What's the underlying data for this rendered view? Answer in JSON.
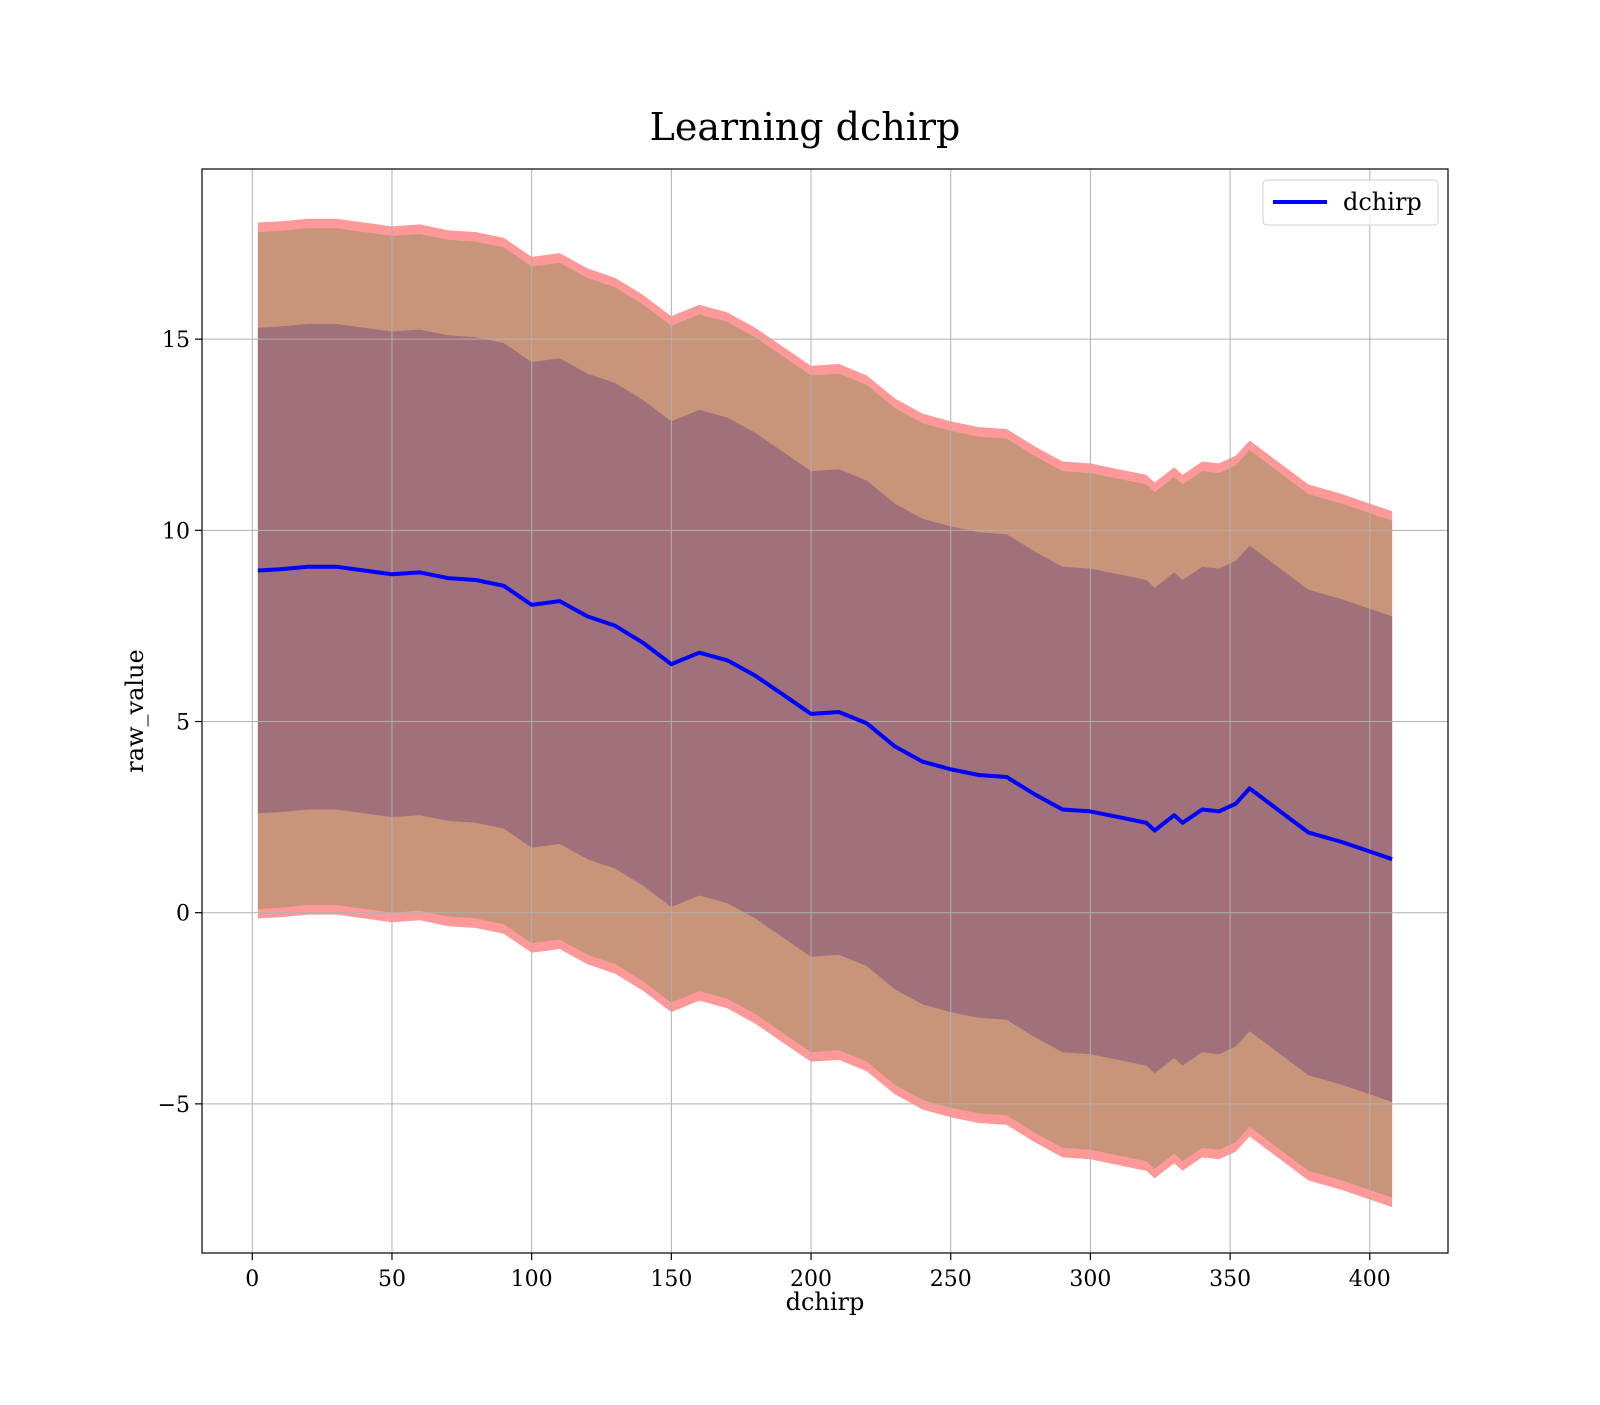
{
  "chart_data": {
    "type": "line",
    "title": "Learning dchirp",
    "xlabel": "dchirp",
    "ylabel": "raw_value",
    "xlim": [
      -18,
      428
    ],
    "ylim": [
      -8.9,
      19.45
    ],
    "grid": true,
    "legend_position": "top-right",
    "xticks": [
      0,
      50,
      100,
      150,
      200,
      250,
      300,
      350,
      400
    ],
    "xtick_labels": [
      "0",
      "50",
      "100",
      "150",
      "200",
      "250",
      "300",
      "350",
      "400"
    ],
    "yticks": [
      -5,
      0,
      5,
      10,
      15
    ],
    "ytick_labels": [
      "−5",
      "0",
      "5",
      "10",
      "15"
    ],
    "colors": {
      "mean_line": "#0000ff",
      "outer_band": "#ff9999",
      "mid_band": "#c8957a",
      "inner_band": "#a0717a",
      "grid": "#b0b0b0"
    },
    "series": [
      {
        "name": "dchirp",
        "x": [
          2,
          10,
          20,
          30,
          40,
          50,
          60,
          70,
          80,
          90,
          100,
          110,
          120,
          130,
          140,
          150,
          160,
          170,
          180,
          190,
          200,
          210,
          220,
          230,
          240,
          250,
          260,
          270,
          280,
          290,
          300,
          310,
          320,
          323,
          330,
          333,
          340,
          346,
          352,
          357,
          367,
          378,
          390,
          400,
          408
        ],
        "y": [
          8.95,
          8.98,
          9.05,
          9.05,
          8.95,
          8.85,
          8.9,
          8.75,
          8.7,
          8.55,
          8.05,
          8.15,
          7.75,
          7.5,
          7.05,
          6.5,
          6.8,
          6.6,
          6.2,
          5.7,
          5.2,
          5.25,
          4.95,
          4.35,
          3.95,
          3.75,
          3.6,
          3.55,
          3.1,
          2.7,
          2.65,
          2.5,
          2.35,
          2.15,
          2.55,
          2.35,
          2.7,
          2.65,
          2.85,
          3.25,
          2.7,
          2.1,
          1.85,
          1.6,
          1.4
        ]
      }
    ],
    "band_half_widths": {
      "inner": 6.35,
      "mid": 8.85,
      "outer": 9.1
    }
  }
}
